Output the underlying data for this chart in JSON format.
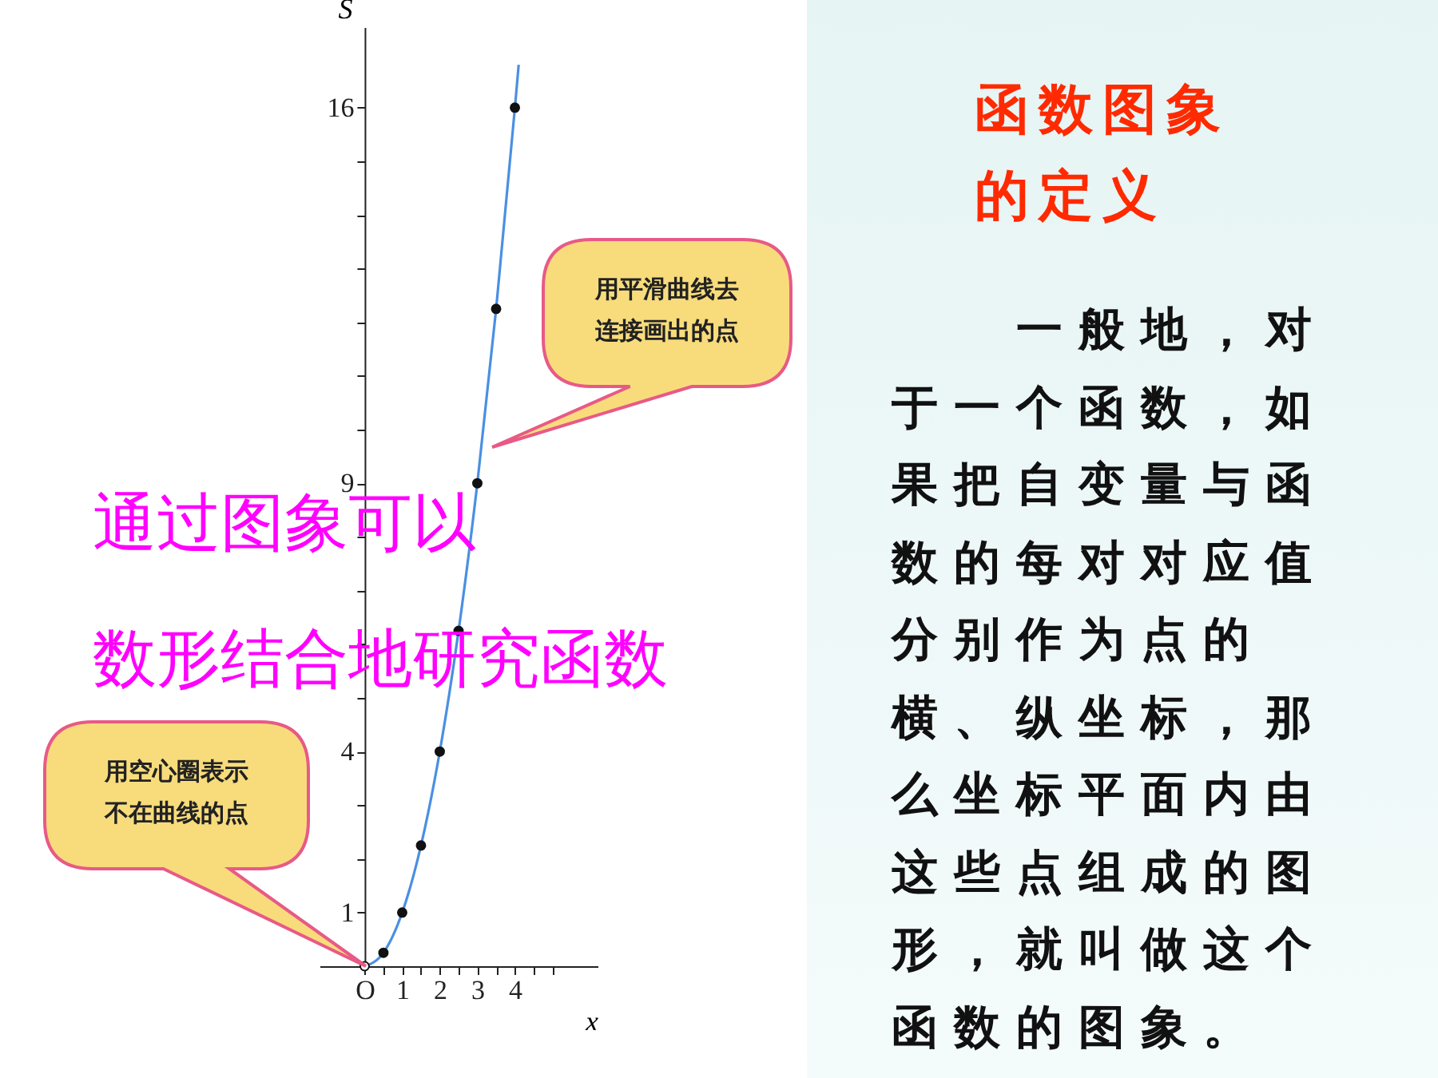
{
  "chart_data": {
    "type": "scatter",
    "title": "函数图象的定义",
    "xlabel": "x",
    "ylabel": "S",
    "xlim": [
      -1.2,
      6.2
    ],
    "ylim": [
      0,
      17.5
    ],
    "xticks": [
      {
        "value": 0,
        "label": "O"
      },
      {
        "value": 0.5,
        "label": null
      },
      1,
      {
        "value": 1.5,
        "label": null
      },
      2,
      {
        "value": 2.5,
        "label": null
      },
      3,
      {
        "value": 3.5,
        "label": null
      },
      4,
      {
        "value": 4.5,
        "label": null
      },
      {
        "value": 5,
        "label": null
      }
    ],
    "yticks": [
      1,
      {
        "value": 2,
        "label": null
      },
      {
        "value": 3,
        "label": null
      },
      4,
      {
        "value": 5,
        "label": null
      },
      {
        "value": 6,
        "label": null
      },
      {
        "value": 7,
        "label": null
      },
      {
        "value": 8,
        "label": null
      },
      9,
      {
        "value": 10,
        "label": null
      },
      {
        "value": 11,
        "label": null
      },
      {
        "value": 12,
        "label": null
      },
      {
        "value": 13,
        "label": null
      },
      {
        "value": 14,
        "label": null
      },
      {
        "value": 15,
        "label": null
      },
      16
    ],
    "grid": false,
    "series": [
      {
        "type": "line",
        "marker": "none",
        "color": "#4a90e2",
        "x": [
          0,
          0.5,
          1,
          1.5,
          2,
          2.5,
          3,
          3.5,
          4,
          4.1
        ],
        "values": [
          0,
          0.25,
          1,
          2.25,
          4,
          6.25,
          9,
          12.25,
          16,
          16.8
        ]
      },
      {
        "marker": "circle",
        "color": "#111111",
        "x": [
          0.5,
          1,
          1.5,
          2,
          2.5,
          3,
          3.5,
          4
        ],
        "values": [
          0.25,
          1,
          2.25,
          4,
          6.25,
          9,
          12.25,
          16
        ]
      },
      {
        "marker": "circle",
        "color": "#ffffff",
        "x": [
          0
        ],
        "values": [
          0
        ]
      }
    ],
    "annotations": [
      "用平滑曲线去连接画出的点",
      "用空心圈表示不在曲线的点",
      "通过图象可以",
      "数形结合地研究函数",
      "一般地，对于一个函数，如果把自变量与函数的每对对应值分别作为点的横、纵坐标，那么坐标平面内由这些点组成的图形，就叫做这个函数的图象。"
    ]
  }
}
